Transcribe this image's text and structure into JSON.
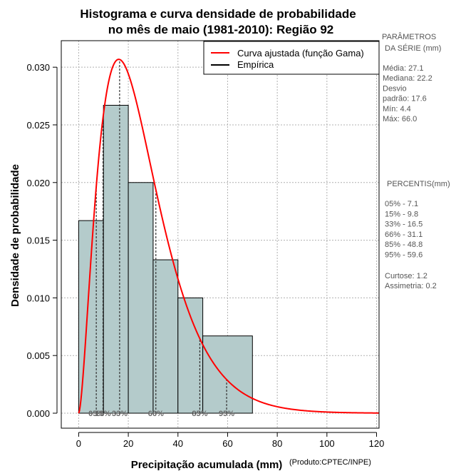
{
  "chart_data": {
    "type": "bar",
    "title_line1": "Histograma e curva densidade de probabilidade",
    "title_line2": "no mês de maio (1981-2010): Região 92",
    "xlabel": "Precipitação acumulada (mm)",
    "ylabel": "Densidade de probabilidade",
    "product_note": "(Produto:CPTEC/INPE)",
    "xlim": [
      -7,
      121
    ],
    "ylim": [
      -0.0013,
      0.0323
    ],
    "x_ticks": [
      0,
      20,
      40,
      60,
      80,
      100,
      120
    ],
    "x_tick_labels": [
      "0",
      "20",
      "40",
      "60",
      "80",
      "100",
      "120"
    ],
    "y_ticks": [
      0.0,
      0.005,
      0.01,
      0.015,
      0.02,
      0.025,
      0.03
    ],
    "y_tick_labels": [
      "0.000",
      "0.005",
      "0.010",
      "0.015",
      "0.020",
      "0.025",
      "0.030"
    ],
    "grid": true,
    "bins": [
      {
        "from": 0,
        "to": 10,
        "density": 0.0167
      },
      {
        "from": 10,
        "to": 20,
        "density": 0.0267
      },
      {
        "from": 20,
        "to": 30,
        "density": 0.02
      },
      {
        "from": 30,
        "to": 40,
        "density": 0.0133
      },
      {
        "from": 40,
        "to": 50,
        "density": 0.01
      },
      {
        "from": 50,
        "to": 70,
        "density": 0.0067
      }
    ],
    "bar_color": "#b4cbcb",
    "fitted_curve": {
      "name": "Curva ajustada (função Gama)",
      "color": "#ff0000",
      "shape": 2.7,
      "scale": 9.5,
      "x_range": [
        0,
        121
      ]
    },
    "empirical": {
      "name": "Empírica",
      "color": "#000000"
    },
    "legend_position": "top-right",
    "percentile_markers": [
      {
        "value": 7.1,
        "label": "05%"
      },
      {
        "value": 9.8,
        "label": "15%"
      },
      {
        "value": 16.5,
        "label": "33%"
      },
      {
        "value": 31.1,
        "label": "66%"
      },
      {
        "value": 48.8,
        "label": "85%"
      },
      {
        "value": 59.6,
        "label": "95%"
      }
    ]
  },
  "side_panel": {
    "params_title_1": "PARÂMETROS",
    "params_title_2": "DA SÉRIE (mm)",
    "params": [
      "Média:  27.1",
      "Mediana:  22.2",
      "Desvio",
      "padrão:  17.6",
      "Mín:  4.4",
      "Máx:  66.0"
    ],
    "percentis_title": "PERCENTIS(mm)",
    "percentis": [
      "05% -   7.1",
      "15% -   9.8",
      "33% -   16.5",
      "66% -   31.1",
      "85% -   48.8",
      "95% -   59.6"
    ],
    "stats": [
      "Curtose:  1.2",
      "Assimetria:  0.2"
    ]
  }
}
